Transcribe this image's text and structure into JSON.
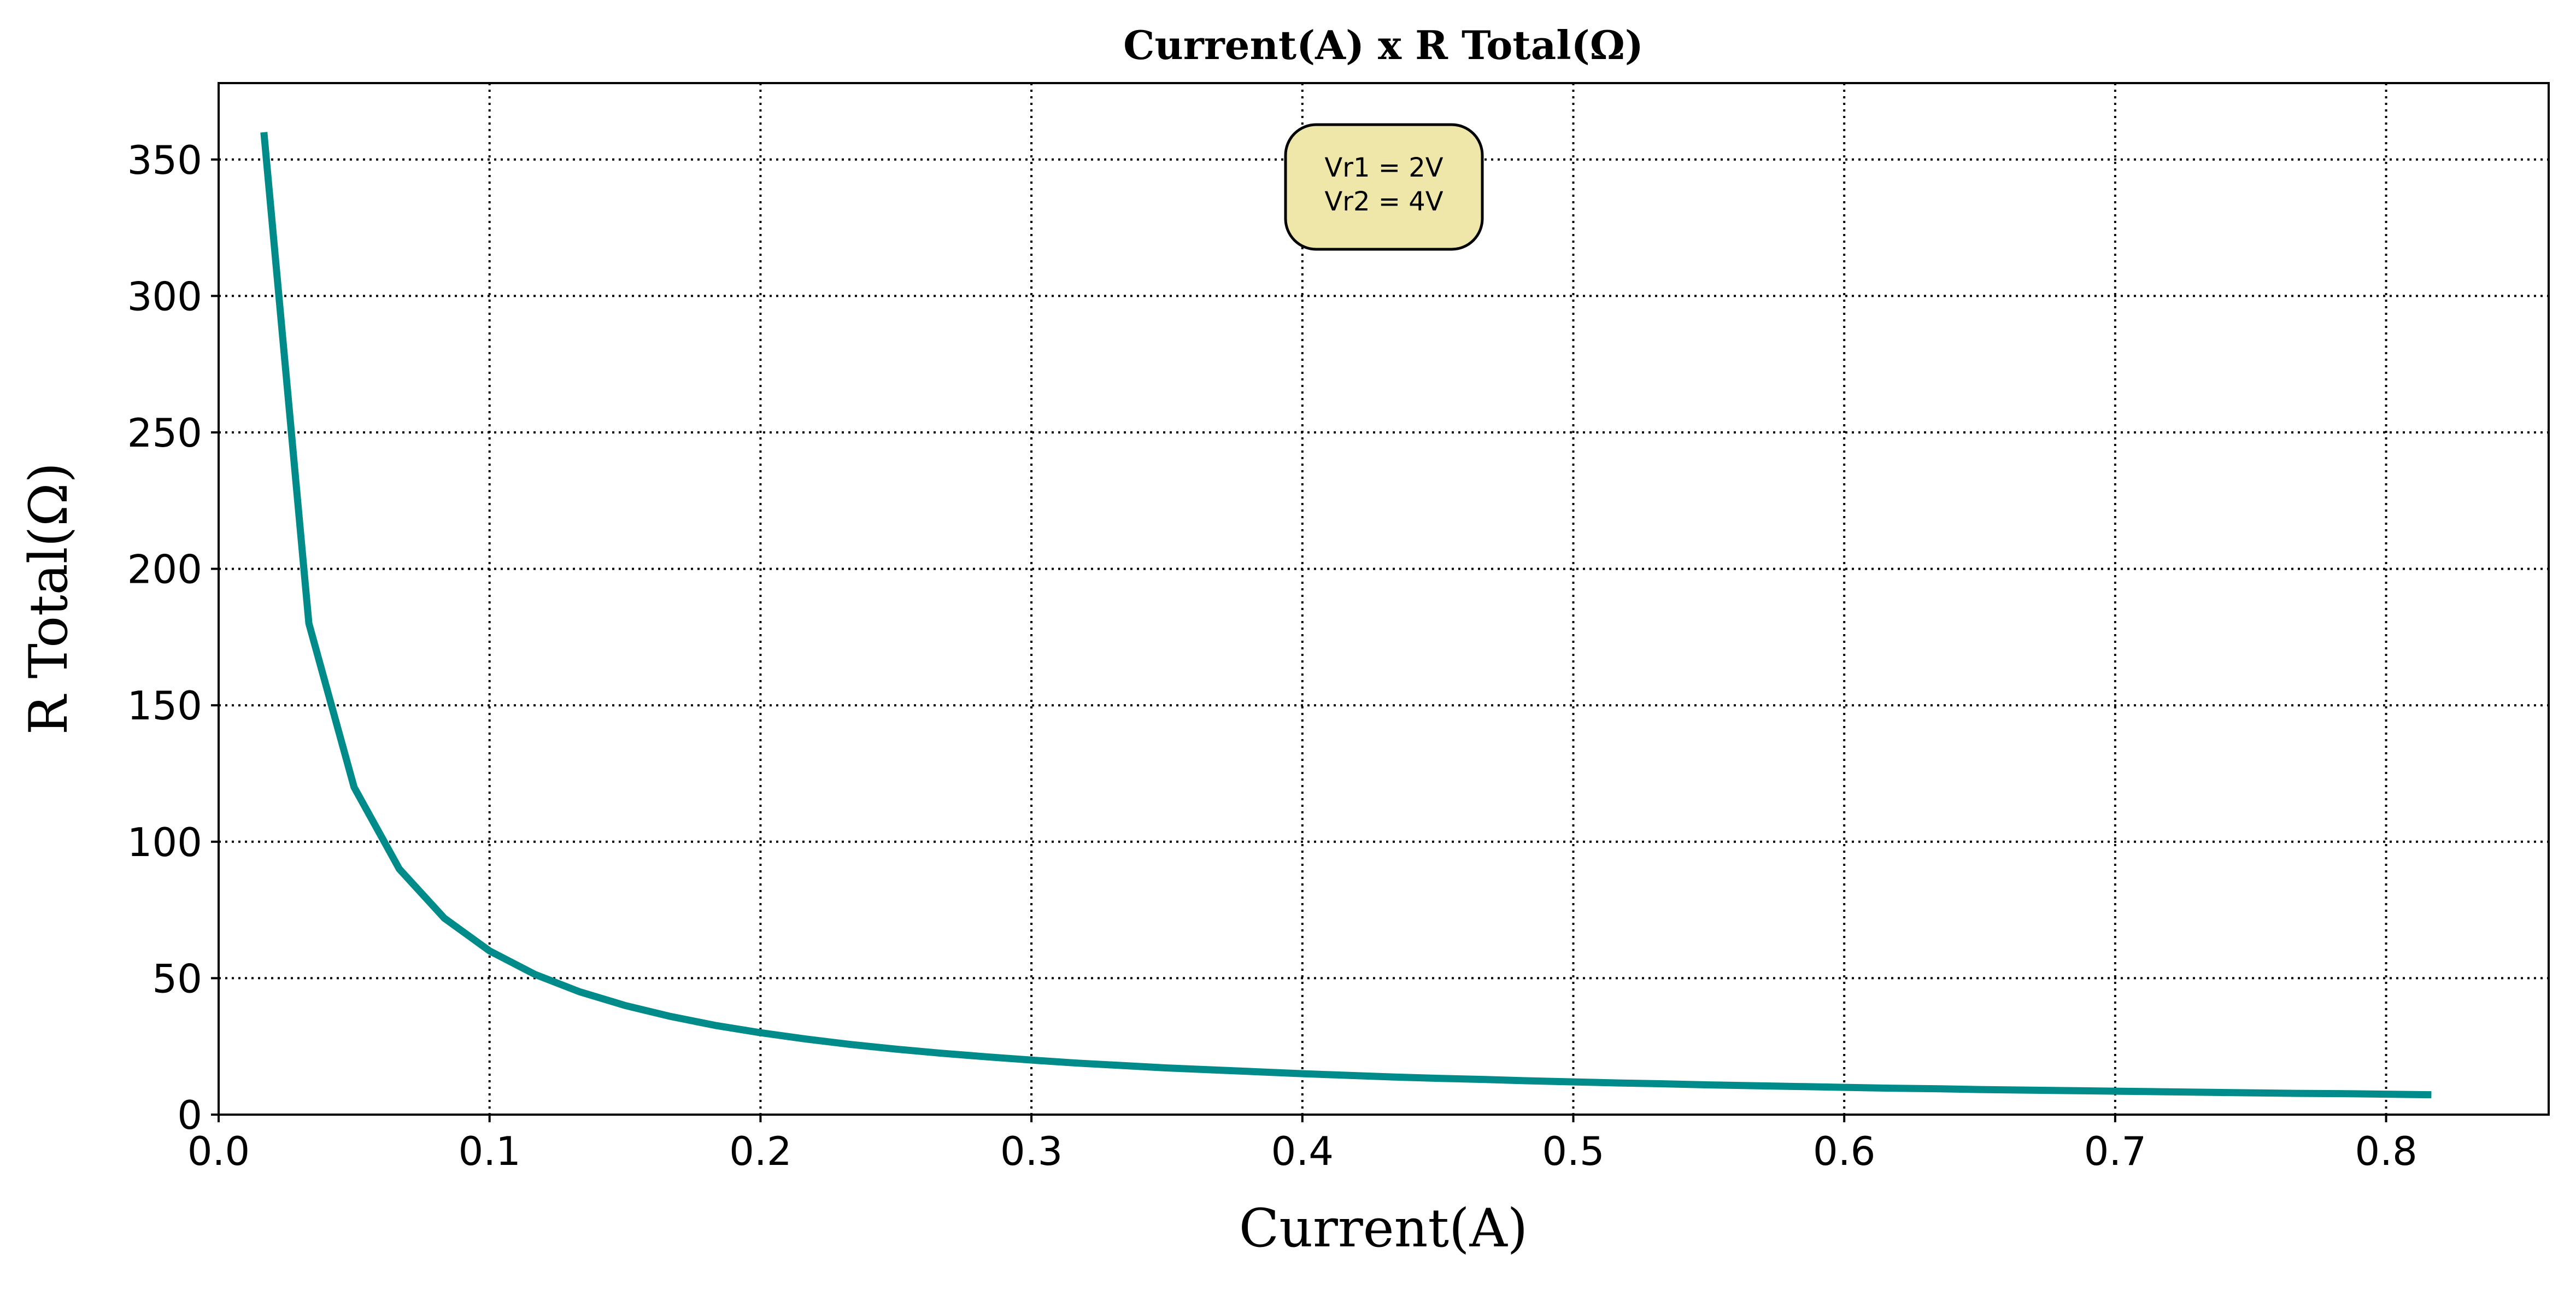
{
  "chart_data": {
    "type": "line",
    "title": "Current(A) x R Total(Ω)",
    "xlabel": "Current(A)",
    "ylabel": "R Total(Ω)",
    "xlim": [
      0.0,
      0.86
    ],
    "ylim": [
      0,
      378
    ],
    "xticks": [
      0.0,
      0.1,
      0.2,
      0.3,
      0.4,
      0.5,
      0.6,
      0.7,
      0.8
    ],
    "xtick_labels": [
      "0.0",
      "0.1",
      "0.2",
      "0.3",
      "0.4",
      "0.5",
      "0.6",
      "0.7",
      "0.8"
    ],
    "yticks": [
      0,
      50,
      100,
      150,
      200,
      250,
      300,
      350
    ],
    "ytick_labels": [
      "0",
      "50",
      "100",
      "150",
      "200",
      "250",
      "300",
      "350"
    ],
    "grid": true,
    "annotation": {
      "lines": [
        "Vr1 = 2V",
        "Vr2 = 4V"
      ],
      "box_color": "#efe7a9"
    },
    "series": [
      {
        "color": "#008b8b",
        "x": [
          0.0167,
          0.0333,
          0.05,
          0.0667,
          0.0833,
          0.1,
          0.1167,
          0.1333,
          0.15,
          0.1667,
          0.1833,
          0.2,
          0.2167,
          0.2333,
          0.25,
          0.2667,
          0.2833,
          0.3,
          0.3167,
          0.3333,
          0.35,
          0.3667,
          0.3833,
          0.4,
          0.4167,
          0.4333,
          0.45,
          0.4667,
          0.4833,
          0.5,
          0.5167,
          0.5333,
          0.55,
          0.5667,
          0.5833,
          0.6,
          0.6167,
          0.6333,
          0.65,
          0.6667,
          0.6833,
          0.7,
          0.7167,
          0.7333,
          0.75,
          0.7667,
          0.7833,
          0.8,
          0.8167
        ],
        "y": [
          360,
          180,
          120,
          90,
          72,
          60,
          51.4,
          45,
          40,
          36,
          32.7,
          30,
          27.7,
          25.7,
          24,
          22.5,
          21.2,
          20,
          18.9,
          18,
          17.1,
          16.4,
          15.7,
          15,
          14.4,
          13.8,
          13.3,
          12.9,
          12.4,
          12,
          11.6,
          11.3,
          10.9,
          10.6,
          10.3,
          10,
          9.7,
          9.5,
          9.2,
          9,
          8.8,
          8.6,
          8.4,
          8.2,
          8,
          7.8,
          7.7,
          7.5,
          7.3
        ]
      }
    ]
  }
}
